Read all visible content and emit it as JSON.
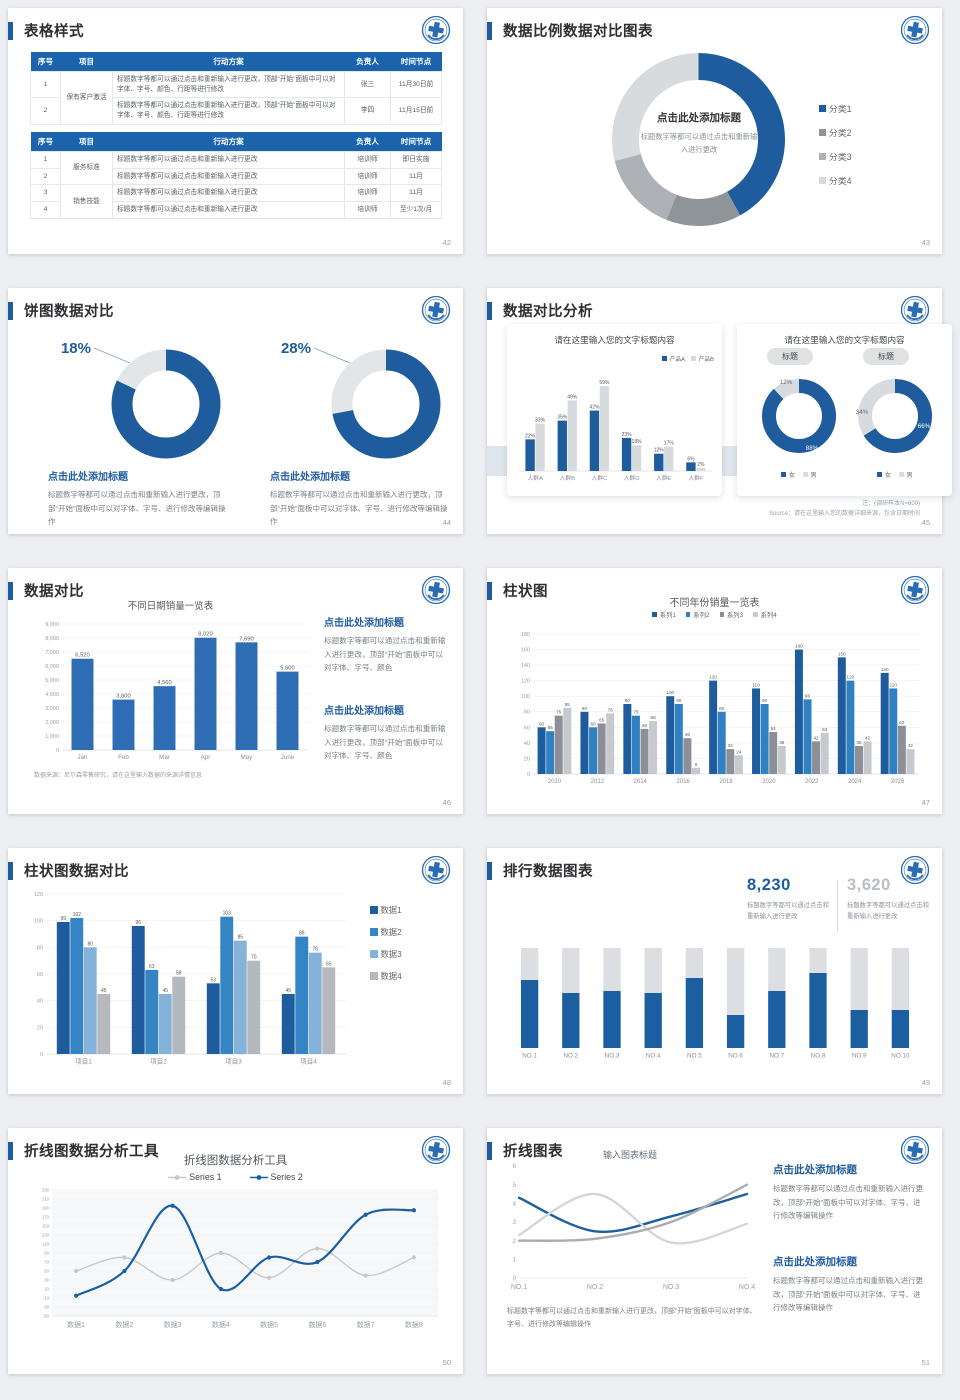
{
  "accent": "#1f5c9e",
  "s42": {
    "num": "42",
    "title": "表格样式",
    "tables": [
      {
        "headers": [
          "序号",
          "项目",
          "行动方案",
          "负责人",
          "时间节点"
        ],
        "groups": [
          {
            "project": "保有客户激活",
            "rows": [
              {
                "no": "1",
                "plan": "标题数字等都可以通过点击和重新输入进行更改，顶部“开始”面板中可以对字体、字号、颜色、行距等进行修改",
                "owner": "张三",
                "time": "11月30日前"
              },
              {
                "no": "2",
                "plan": "标题数字等都可以通过点击和重新输入进行更改，顶部“开始”面板中可以对字体、字号、颜色、行距等进行修改",
                "owner": "李四",
                "time": "11月15日前"
              }
            ]
          }
        ]
      },
      {
        "headers": [
          "序号",
          "项目",
          "行动方案",
          "负责人",
          "时间节点"
        ],
        "groups": [
          {
            "project": "服务标准",
            "rows": [
              {
                "no": "1",
                "plan": "标题数字等都可以通过点击和重新输入进行更改",
                "owner": "培训师",
                "time": "即日实施"
              },
              {
                "no": "2",
                "plan": "标题数字等都可以通过点击和重新输入进行更改",
                "owner": "培训师",
                "time": "11月"
              }
            ]
          },
          {
            "project": "销售技能",
            "rows": [
              {
                "no": "3",
                "plan": "标题数字等都可以通过点击和重新输入进行更改",
                "owner": "培训师",
                "time": "11月"
              },
              {
                "no": "4",
                "plan": "标题数字等都可以通过点击和重新输入进行更改",
                "owner": "培训师",
                "time": "至少1次/月"
              }
            ]
          }
        ]
      }
    ]
  },
  "s43": {
    "num": "43",
    "title": "数据比例数据对比图表",
    "center_heading": "点击此处添加标题",
    "center_body": "标题数字等都可以通过点击和重新输入进行更改"
  },
  "s44": {
    "num": "44",
    "title": "饼图数据对比",
    "blocks": [
      {
        "heading": "点击此处添加标题",
        "body": "标题数字等都可以通过点击和重新输入进行更改，顶部“开始”面板中可以对字体、字号、进行修改等编辑操作"
      },
      {
        "heading": "点击此处添加标题",
        "body": "标题数字等都可以通过点击和重新输入进行更改，顶部“开始”面板中可以对字体、字号、进行修改等编辑操作"
      }
    ]
  },
  "s45": {
    "num": "45",
    "title": "数据对比分析",
    "card2_title": "请在这里输入您的文字标题内容",
    "pill1": "标题",
    "pill2": "标题",
    "note1": "注：(调研样本N=600)",
    "note2": "Source：请在这里输入您的数据详细来源，包含日期时间"
  },
  "s46": {
    "num": "46",
    "title": "数据对比",
    "source": "数据来源：尼尔森零售研究，请在这里输入数据的来源详情信息",
    "blocks": [
      {
        "heading": "点击此处添加标题",
        "body": "标题数字等都可以通过点击和重新输入进行更改，顶部“开始”面板中可以对字体、字号、颜色"
      },
      {
        "heading": "点击此处添加标题",
        "body": "标题数字等都可以通过点击和重新输入进行更改，顶部“开始”面板中可以对字体、字号、颜色"
      }
    ]
  },
  "s47": {
    "num": "47",
    "title": "柱状图"
  },
  "s48": {
    "num": "48",
    "title": "柱状图数据对比"
  },
  "s49": {
    "num": "49",
    "title": "排行数据图表",
    "stat1": {
      "value": "8,230",
      "caption": "标题数字等都可以通过点击和重新输入进行更改"
    },
    "stat2": {
      "value": "3,620",
      "caption": "标题数字等都可以通过点击和重新输入进行更改"
    }
  },
  "s50": {
    "num": "50",
    "title": "折线图数据分析工具"
  },
  "s51": {
    "num": "51",
    "title": "折线图表",
    "para": "标题数字等都可以通过点击和重新输入进行更改，顶部“开始”面板中可以对字体、字号、进行修改等编辑操作",
    "blocks": [
      {
        "heading": "点击此处添加标题",
        "body": "标题数字等都可以通过点击和重新输入进行更改，顶部“开始”面板中可以对字体、字号、进行修改等编辑操作"
      },
      {
        "heading": "点击此处添加标题",
        "body": "标题数字等都可以通过点击和重新输入进行更改，顶部“开始”面板中可以对字体、字号、进行修改等编辑操作"
      }
    ]
  },
  "chart_data": [
    {
      "id": "donut43",
      "type": "pie",
      "title": "",
      "labels": [
        "分类1",
        "分类2",
        "分类3",
        "分类4"
      ],
      "values": [
        42,
        14,
        15,
        29
      ],
      "colors": [
        "#1f5c9e",
        "#8f9499",
        "#aeb2b6",
        "#d8dbde"
      ],
      "legend_position": "right"
    },
    {
      "id": "donut44a",
      "type": "pie",
      "labels": [
        "占比",
        "其他"
      ],
      "values": [
        82,
        18
      ],
      "colors": [
        "#1f5c9e",
        "#e3e6e9"
      ],
      "callout": "18%"
    },
    {
      "id": "donut44b",
      "type": "pie",
      "labels": [
        "占比",
        "其他"
      ],
      "values": [
        72,
        28
      ],
      "colors": [
        "#1f5c9e",
        "#e3e6e9"
      ],
      "callout": "28%"
    },
    {
      "id": "bars45",
      "type": "bar",
      "title": "请在这里输入您的文字标题内容",
      "categories": [
        "人群A",
        "人群B",
        "人群C",
        "人群D",
        "人群E",
        "人群F"
      ],
      "series": [
        {
          "name": "产品A",
          "color": "#1f5c9e",
          "values": [
            22,
            35,
            42,
            23,
            12,
            6
          ]
        },
        {
          "name": "产品B",
          "color": "#d8dbde",
          "values": [
            33,
            49,
            59,
            18,
            17,
            2
          ]
        }
      ],
      "ylim": [
        0,
        66
      ],
      "suffix": "%",
      "grid": false
    },
    {
      "id": "donut45a",
      "type": "pie",
      "labels": [
        "女",
        "男"
      ],
      "values": [
        88,
        12
      ],
      "colors": [
        "#1f5c9e",
        "#d8dbde"
      ],
      "seg_labels": [
        {
          "text": "88%",
          "color": "#ffffff"
        },
        {
          "text": "12%",
          "color": "#666b70"
        }
      ]
    },
    {
      "id": "donut45b",
      "type": "pie",
      "labels": [
        "女",
        "男"
      ],
      "values": [
        66,
        34
      ],
      "colors": [
        "#1f5c9e",
        "#d8dbde"
      ],
      "seg_labels": [
        {
          "text": "66%",
          "color": "#ffffff"
        },
        {
          "text": "34%",
          "color": "#666b70"
        }
      ]
    },
    {
      "id": "bars46",
      "type": "bar",
      "title": "不同日期销量一览表",
      "categories": [
        "Jan",
        "Feb",
        "Mar",
        "Apr",
        "May",
        "June"
      ],
      "values": [
        6520,
        3600,
        4560,
        8020,
        7690,
        5600
      ],
      "color": "#2e6db4",
      "ylim": [
        0,
        9000
      ],
      "ystep": 1000,
      "comma": true,
      "grid": true
    },
    {
      "id": "bars47",
      "type": "bar",
      "title": "不同年份销量一览表",
      "categories": [
        "2010",
        "2012",
        "2014",
        "2016",
        "2018",
        "2020",
        "2022",
        "2024",
        "2026"
      ],
      "series": [
        {
          "name": "系列1",
          "color": "#1f5c9e",
          "values": [
            60,
            80,
            90,
            100,
            120,
            110,
            160,
            150,
            130
          ]
        },
        {
          "name": "系列2",
          "color": "#2f81c2",
          "values": [
            55,
            60,
            75,
            90,
            80,
            90,
            96,
            120,
            110
          ]
        },
        {
          "name": "系列3",
          "color": "#8c9096",
          "values": [
            75,
            65,
            58,
            46,
            32,
            54,
            42,
            36,
            62
          ]
        },
        {
          "name": "系列4",
          "color": "#c6c9cd",
          "values": [
            85,
            78,
            68,
            8,
            24,
            36,
            53,
            42,
            32
          ]
        }
      ],
      "ylim": [
        0,
        180
      ],
      "ystep": 20,
      "grid": true
    },
    {
      "id": "bars48",
      "type": "bar",
      "title": "",
      "categories": [
        "项目1",
        "项目2",
        "项目3",
        "项目4"
      ],
      "series": [
        {
          "name": "数据1",
          "color": "#1f5c9e",
          "values": [
            99,
            96,
            53,
            45
          ]
        },
        {
          "name": "数据2",
          "color": "#3585c5",
          "values": [
            102,
            63,
            103,
            88
          ]
        },
        {
          "name": "数据3",
          "color": "#85b2d8",
          "values": [
            80,
            45,
            85,
            76
          ]
        },
        {
          "name": "数据4",
          "color": "#b5b8bc",
          "values": [
            45,
            58,
            70,
            65
          ]
        }
      ],
      "ylim": [
        0,
        120
      ],
      "ystep": 20,
      "grid": true
    },
    {
      "id": "bars49",
      "type": "bar",
      "stacked": true,
      "title": "",
      "categories": [
        "NO.1",
        "NO.2",
        "NO.3",
        "NO.4",
        "NO.5",
        "NO.6",
        "NO.7",
        "NO.8",
        "NO.9",
        "NO.10"
      ],
      "series": [
        {
          "color": "#1b5fa0",
          "values": [
            68,
            55,
            57,
            55,
            70,
            33,
            57,
            75,
            38,
            38
          ]
        },
        {
          "color": "#dcdee1",
          "values": [
            32,
            45,
            43,
            45,
            30,
            67,
            43,
            25,
            62,
            62
          ]
        }
      ],
      "ylim": [
        0,
        100
      ]
    },
    {
      "id": "line50",
      "type": "line",
      "title": "折线图数据分析工具",
      "categories": [
        "数据1",
        "数据2",
        "数据3",
        "数据4",
        "数据5",
        "数据6",
        "数据7",
        "数据8"
      ],
      "series": [
        {
          "name": "Series 1",
          "color": "#c6c9cc",
          "values": [
            50,
            80,
            30,
            90,
            35,
            100,
            40,
            80
          ],
          "markers": true,
          "width": 1.4,
          "marker": "linedot"
        },
        {
          "name": "Series 2",
          "color": "#1b5fa0",
          "values": [
            -5,
            50,
            195,
            10,
            80,
            70,
            175,
            185
          ],
          "markers": true,
          "width": 2.2,
          "marker": "linedot"
        }
      ],
      "ylim": [
        -50,
        230
      ],
      "ystep": 20,
      "grid": true
    },
    {
      "id": "line51",
      "type": "line",
      "title": "输入图表标题",
      "categories": [
        "NO.1",
        "NO.2",
        "NO.3",
        "NO.4"
      ],
      "series": [
        {
          "color": "#1b5fa0",
          "values": [
            4.3,
            2.5,
            3.3,
            4.5
          ],
          "width": 2.4
        },
        {
          "color": "#d4d6d9",
          "values": [
            2.3,
            4.5,
            1.9,
            2.9
          ],
          "width": 2.4
        },
        {
          "color": "#a9adb2",
          "values": [
            2.0,
            2.1,
            3.0,
            5.0
          ],
          "width": 2.4
        }
      ],
      "ylim": [
        0,
        6
      ],
      "ystep": 1,
      "grid": false
    }
  ]
}
